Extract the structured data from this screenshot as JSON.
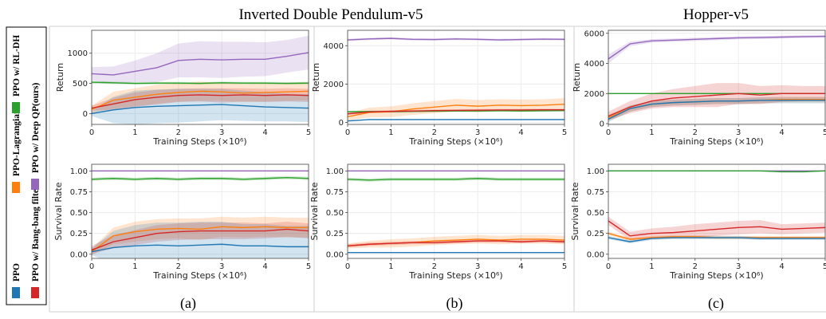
{
  "column_titles": [
    "Inverted Double Pendulum-v5",
    "",
    "Hopper-v5"
  ],
  "subplot_labels": [
    "(a)",
    "(b)",
    "(c)"
  ],
  "legend": [
    {
      "name": "PPO",
      "color": "#1f77b4"
    },
    {
      "name": "PPO w/ Bang-bang filter",
      "color": "#d62728"
    },
    {
      "name": "PPO-Lagrangian",
      "color": "#ff7f0e"
    },
    {
      "name": "PPO w/ RL-DH",
      "color": "#2ca02c"
    },
    {
      "name": "PPO w/ Deep QP(ours)",
      "color": "#9467bd"
    }
  ],
  "chart_data": [
    {
      "type": "line",
      "panel": "a-top",
      "xlabel": "Training Steps (×10⁶)",
      "ylabel": "Return",
      "xlim": [
        0,
        5
      ],
      "ylim": [
        -180,
        1380
      ],
      "xticks": [
        0,
        1,
        2,
        3,
        4,
        5
      ],
      "yticks": [
        0,
        500,
        1000
      ],
      "x": [
        0,
        0.5,
        1,
        1.5,
        2,
        2.5,
        3,
        3.5,
        4,
        4.5,
        5
      ],
      "series": [
        {
          "name": "PPO w/ Deep QP(ours)",
          "values": [
            660,
            640,
            700,
            760,
            880,
            900,
            890,
            900,
            900,
            950,
            1010
          ],
          "band": [
            110,
            140,
            180,
            240,
            280,
            300,
            300,
            290,
            280,
            270,
            280
          ]
        },
        {
          "name": "PPO w/ RL-DH",
          "values": [
            520,
            510,
            500,
            505,
            505,
            500,
            510,
            505,
            505,
            500,
            505
          ],
          "band": [
            20,
            20,
            20,
            20,
            20,
            20,
            20,
            20,
            20,
            20,
            20
          ]
        },
        {
          "name": "PPO-Lagrangian",
          "values": [
            70,
            220,
            270,
            320,
            350,
            370,
            360,
            340,
            350,
            360,
            370
          ],
          "band": [
            60,
            140,
            150,
            160,
            150,
            160,
            150,
            150,
            150,
            150,
            150
          ]
        },
        {
          "name": "PPO w/ Bang-bang filter",
          "values": [
            90,
            160,
            230,
            270,
            300,
            310,
            300,
            310,
            300,
            310,
            300
          ],
          "band": [
            40,
            100,
            120,
            120,
            110,
            110,
            120,
            110,
            110,
            110,
            110
          ]
        },
        {
          "name": "PPO",
          "values": [
            0,
            60,
            100,
            120,
            130,
            140,
            150,
            130,
            110,
            100,
            90
          ],
          "band": [
            40,
            220,
            280,
            280,
            280,
            270,
            260,
            250,
            240,
            230,
            230
          ]
        }
      ]
    },
    {
      "type": "line",
      "panel": "b-top",
      "xlabel": "Training Steps (×10⁶)",
      "ylabel": "Return",
      "xlim": [
        0,
        5
      ],
      "ylim": [
        -100,
        4800
      ],
      "xticks": [
        0,
        1,
        2,
        3,
        4,
        5
      ],
      "yticks": [
        0,
        2000,
        4000
      ],
      "x": [
        0,
        0.5,
        1,
        1.5,
        2,
        2.5,
        3,
        3.5,
        4,
        4.5,
        5
      ],
      "series": [
        {
          "name": "PPO w/ Deep QP(ours)",
          "values": [
            4300,
            4350,
            4380,
            4330,
            4320,
            4350,
            4330,
            4300,
            4320,
            4340,
            4330
          ],
          "band": [
            60,
            60,
            60,
            60,
            60,
            60,
            60,
            60,
            60,
            60,
            60
          ]
        },
        {
          "name": "PPO w/ RL-DH",
          "values": [
            560,
            570,
            560,
            580,
            590,
            600,
            600,
            610,
            600,
            610,
            620
          ],
          "band": [
            40,
            40,
            40,
            40,
            40,
            40,
            40,
            40,
            40,
            40,
            40
          ]
        },
        {
          "name": "PPO-Lagrangian",
          "values": [
            300,
            520,
            560,
            700,
            800,
            900,
            850,
            900,
            880,
            900,
            950
          ],
          "band": [
            200,
            250,
            280,
            300,
            320,
            330,
            320,
            310,
            310,
            310,
            320
          ]
        },
        {
          "name": "PPO w/ Bang-bang filter",
          "values": [
            450,
            550,
            580,
            600,
            620,
            630,
            640,
            650,
            650,
            660,
            660
          ],
          "band": [
            60,
            60,
            60,
            60,
            60,
            60,
            60,
            60,
            60,
            60,
            60
          ]
        },
        {
          "name": "PPO",
          "values": [
            80,
            150,
            150,
            150,
            150,
            150,
            150,
            150,
            150,
            150,
            150
          ],
          "band": [
            30,
            30,
            30,
            30,
            30,
            30,
            30,
            30,
            30,
            30,
            30
          ]
        }
      ]
    },
    {
      "type": "line",
      "panel": "c-top",
      "xlabel": "Training Steps (×10⁶)",
      "ylabel": "Return",
      "xlim": [
        0,
        5
      ],
      "ylim": [
        -50,
        6200
      ],
      "xticks": [
        0,
        1,
        2,
        3,
        4,
        5
      ],
      "yticks": [
        0,
        2000,
        4000,
        6000
      ],
      "x": [
        0,
        0.5,
        1,
        1.5,
        2,
        2.5,
        3,
        3.5,
        4,
        4.5,
        5
      ],
      "series": [
        {
          "name": "PPO w/ Deep QP(ours)",
          "values": [
            4300,
            5300,
            5500,
            5550,
            5600,
            5650,
            5700,
            5720,
            5750,
            5780,
            5800
          ],
          "band": [
            300,
            150,
            120,
            110,
            110,
            110,
            100,
            100,
            100,
            100,
            100
          ]
        },
        {
          "name": "PPO w/ RL-DH",
          "values": [
            2000,
            2000,
            2000,
            2000,
            2000,
            2000,
            2000,
            2000,
            2000,
            2000,
            2000
          ],
          "band": [
            40,
            40,
            40,
            40,
            40,
            40,
            40,
            40,
            40,
            40,
            40
          ]
        },
        {
          "name": "PPO-Lagrangian",
          "values": [
            400,
            1000,
            1300,
            1400,
            1450,
            1500,
            1500,
            1550,
            1600,
            1600,
            1600
          ],
          "band": [
            200,
            200,
            200,
            200,
            200,
            200,
            200,
            200,
            200,
            200,
            200
          ]
        },
        {
          "name": "PPO w/ Bang-bang filter",
          "values": [
            500,
            1100,
            1500,
            1700,
            1800,
            1900,
            2000,
            1900,
            2000,
            2000,
            2000
          ],
          "band": [
            300,
            400,
            500,
            600,
            700,
            800,
            700,
            600,
            550,
            500,
            500
          ]
        },
        {
          "name": "PPO",
          "values": [
            300,
            1000,
            1300,
            1400,
            1450,
            1500,
            1500,
            1550,
            1550,
            1550,
            1550
          ],
          "band": [
            200,
            200,
            200,
            200,
            200,
            200,
            200,
            200,
            200,
            200,
            200
          ]
        }
      ]
    },
    {
      "type": "line",
      "panel": "a-bottom",
      "xlabel": "Training Steps (×10⁶)",
      "ylabel": "Survival Rate",
      "xlim": [
        0,
        5
      ],
      "ylim": [
        -0.05,
        1.08
      ],
      "xticks": [
        0,
        1,
        2,
        3,
        4,
        5
      ],
      "yticks": [
        0.0,
        0.25,
        0.5,
        0.75,
        1.0
      ],
      "x": [
        0,
        0.5,
        1,
        1.5,
        2,
        2.5,
        3,
        3.5,
        4,
        4.5,
        5
      ],
      "series": [
        {
          "name": "PPO w/ Deep QP(ours)",
          "values": [
            1.0,
            1.0,
            1.0,
            1.0,
            1.0,
            1.0,
            1.0,
            1.0,
            1.0,
            1.0,
            1.0
          ],
          "band": [
            0,
            0,
            0,
            0,
            0,
            0,
            0,
            0,
            0,
            0,
            0
          ]
        },
        {
          "name": "PPO w/ RL-DH",
          "values": [
            0.9,
            0.91,
            0.9,
            0.91,
            0.9,
            0.91,
            0.91,
            0.9,
            0.91,
            0.92,
            0.91
          ],
          "band": [
            0.02,
            0.02,
            0.02,
            0.02,
            0.02,
            0.02,
            0.02,
            0.02,
            0.02,
            0.02,
            0.02
          ]
        },
        {
          "name": "PPO-Lagrangian",
          "values": [
            0.03,
            0.22,
            0.27,
            0.3,
            0.31,
            0.3,
            0.33,
            0.32,
            0.33,
            0.32,
            0.32
          ],
          "band": [
            0.04,
            0.1,
            0.12,
            0.12,
            0.12,
            0.13,
            0.12,
            0.12,
            0.12,
            0.12,
            0.12
          ]
        },
        {
          "name": "PPO w/ Bang-bang filter",
          "values": [
            0.05,
            0.15,
            0.2,
            0.25,
            0.27,
            0.28,
            0.28,
            0.28,
            0.28,
            0.3,
            0.28
          ],
          "band": [
            0.05,
            0.08,
            0.09,
            0.1,
            0.1,
            0.1,
            0.1,
            0.1,
            0.09,
            0.09,
            0.09
          ]
        },
        {
          "name": "PPO",
          "values": [
            0.03,
            0.08,
            0.1,
            0.11,
            0.1,
            0.11,
            0.12,
            0.1,
            0.1,
            0.09,
            0.09
          ],
          "band": [
            0.04,
            0.2,
            0.25,
            0.27,
            0.28,
            0.28,
            0.27,
            0.26,
            0.26,
            0.25,
            0.25
          ]
        }
      ]
    },
    {
      "type": "line",
      "panel": "b-bottom",
      "xlabel": "Training Steps (×10⁶)",
      "ylabel": "Survival Rate",
      "xlim": [
        0,
        5
      ],
      "ylim": [
        -0.05,
        1.08
      ],
      "xticks": [
        0,
        1,
        2,
        3,
        4,
        5
      ],
      "yticks": [
        0.0,
        0.25,
        0.5,
        0.75,
        1.0
      ],
      "x": [
        0,
        0.5,
        1,
        1.5,
        2,
        2.5,
        3,
        3.5,
        4,
        4.5,
        5
      ],
      "series": [
        {
          "name": "PPO w/ Deep QP(ours)",
          "values": [
            1.0,
            1.0,
            1.0,
            1.0,
            1.0,
            1.0,
            1.0,
            1.0,
            1.0,
            1.0,
            1.0
          ],
          "band": [
            0,
            0,
            0,
            0,
            0,
            0,
            0,
            0,
            0,
            0,
            0
          ]
        },
        {
          "name": "PPO w/ RL-DH",
          "values": [
            0.9,
            0.89,
            0.9,
            0.9,
            0.9,
            0.9,
            0.91,
            0.9,
            0.9,
            0.9,
            0.9
          ],
          "band": [
            0.02,
            0.02,
            0.02,
            0.02,
            0.02,
            0.02,
            0.02,
            0.02,
            0.02,
            0.02,
            0.02
          ]
        },
        {
          "name": "PPO-Lagrangian",
          "values": [
            0.1,
            0.12,
            0.13,
            0.14,
            0.16,
            0.17,
            0.18,
            0.17,
            0.18,
            0.18,
            0.17
          ],
          "band": [
            0.03,
            0.04,
            0.05,
            0.05,
            0.05,
            0.05,
            0.05,
            0.05,
            0.05,
            0.05,
            0.05
          ]
        },
        {
          "name": "PPO w/ Bang-bang filter",
          "values": [
            0.1,
            0.12,
            0.13,
            0.14,
            0.14,
            0.15,
            0.16,
            0.16,
            0.15,
            0.16,
            0.15
          ],
          "band": [
            0.02,
            0.02,
            0.02,
            0.02,
            0.02,
            0.02,
            0.02,
            0.02,
            0.02,
            0.02,
            0.02
          ]
        },
        {
          "name": "PPO",
          "values": [
            0.02,
            0.02,
            0.02,
            0.02,
            0.02,
            0.02,
            0.02,
            0.02,
            0.02,
            0.02,
            0.02
          ],
          "band": [
            0.005,
            0.005,
            0.005,
            0.005,
            0.005,
            0.005,
            0.005,
            0.005,
            0.005,
            0.005,
            0.005
          ]
        }
      ]
    },
    {
      "type": "line",
      "panel": "c-bottom",
      "xlabel": "Training Steps (×10⁶)",
      "ylabel": "Survival Rate",
      "xlim": [
        0,
        5
      ],
      "ylim": [
        -0.05,
        1.08
      ],
      "xticks": [
        0,
        1,
        2,
        3,
        4,
        5
      ],
      "yticks": [
        0.0,
        0.25,
        0.5,
        0.75,
        1.0
      ],
      "x": [
        0,
        0.5,
        1,
        1.5,
        2,
        2.5,
        3,
        3.5,
        4,
        4.5,
        5
      ],
      "series": [
        {
          "name": "PPO w/ Deep QP(ours)",
          "values": [
            1.0,
            1.0,
            1.0,
            1.0,
            1.0,
            1.0,
            1.0,
            1.0,
            1.0,
            1.0,
            1.0
          ],
          "band": [
            0,
            0,
            0,
            0,
            0,
            0,
            0,
            0,
            0,
            0,
            0
          ]
        },
        {
          "name": "PPO w/ RL-DH",
          "values": [
            1.0,
            1.0,
            1.0,
            1.0,
            1.0,
            1.0,
            1.0,
            1.0,
            0.99,
            0.99,
            1.0
          ],
          "band": [
            0.005,
            0.005,
            0.005,
            0.005,
            0.005,
            0.005,
            0.005,
            0.005,
            0.005,
            0.005,
            0.005
          ]
        },
        {
          "name": "PPO-Lagrangian",
          "values": [
            0.25,
            0.18,
            0.2,
            0.21,
            0.21,
            0.2,
            0.2,
            0.2,
            0.2,
            0.2,
            0.2
          ],
          "band": [
            0.02,
            0.02,
            0.02,
            0.02,
            0.02,
            0.02,
            0.02,
            0.02,
            0.02,
            0.02,
            0.02
          ]
        },
        {
          "name": "PPO w/ Bang-bang filter",
          "values": [
            0.4,
            0.22,
            0.25,
            0.26,
            0.28,
            0.3,
            0.32,
            0.33,
            0.3,
            0.31,
            0.32
          ],
          "band": [
            0.05,
            0.05,
            0.06,
            0.07,
            0.08,
            0.08,
            0.08,
            0.08,
            0.06,
            0.06,
            0.06
          ]
        },
        {
          "name": "PPO",
          "values": [
            0.2,
            0.15,
            0.19,
            0.2,
            0.2,
            0.2,
            0.2,
            0.19,
            0.19,
            0.19,
            0.19
          ],
          "band": [
            0.02,
            0.02,
            0.02,
            0.02,
            0.02,
            0.02,
            0.02,
            0.02,
            0.02,
            0.02,
            0.02
          ]
        }
      ]
    }
  ]
}
